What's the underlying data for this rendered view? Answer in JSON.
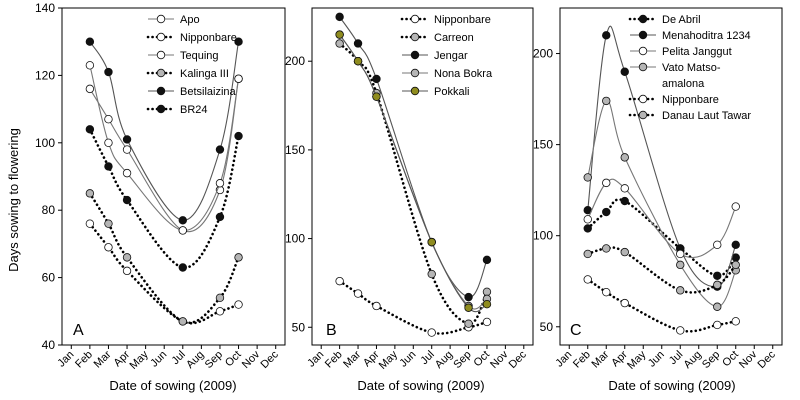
{
  "figure": {
    "ylabel": "Days sowing to flowering",
    "xlabel": "Date of sowing (2009)"
  },
  "chart_data": [
    {
      "type": "line",
      "panel_label": "A",
      "xlabel": "Date of sowing (2009)",
      "ylabel": "Days sowing to flowering",
      "xticks": [
        "Jan",
        "Feb",
        "Mar",
        "Apr",
        "May",
        "Jun",
        "Jul",
        "Aug",
        "Sep",
        "Oct",
        "Nov",
        "Dec"
      ],
      "yticks": [
        40,
        60,
        80,
        100,
        120,
        140
      ],
      "ylim": [
        40,
        140
      ],
      "legend_position": "top-right",
      "series": [
        {
          "name": "Apo",
          "marker": "open",
          "line": "solid",
          "markerColor": "#ffffff",
          "lineColor": "#777777",
          "x": [
            2,
            3,
            4,
            7,
            9,
            10
          ],
          "y": [
            116,
            107,
            98,
            74,
            86,
            119
          ]
        },
        {
          "name": "Nipponbare",
          "marker": "open",
          "line": "dotted",
          "markerColor": "#ffffff",
          "lineColor": "#000000",
          "x": [
            2,
            3,
            4,
            7,
            9,
            10
          ],
          "y": [
            76,
            69,
            62,
            47,
            50,
            52
          ]
        },
        {
          "name": "Tequing",
          "marker": "open",
          "line": "solid",
          "markerColor": "#ffffff",
          "lineColor": "#777777",
          "x": [
            2,
            3,
            4,
            7,
            9,
            10
          ],
          "y": [
            123,
            100,
            91,
            74,
            88,
            119
          ]
        },
        {
          "name": "Kalinga III",
          "marker": "gray",
          "line": "dotted",
          "markerColor": "#b5b5b5",
          "lineColor": "#000000",
          "x": [
            2,
            3,
            4,
            7,
            9,
            10
          ],
          "y": [
            85,
            76,
            66,
            47,
            54,
            66
          ]
        },
        {
          "name": "Betsilaizina",
          "marker": "filled",
          "line": "solid",
          "markerColor": "#111111",
          "lineColor": "#555555",
          "x": [
            2,
            3,
            4,
            7,
            9,
            10
          ],
          "y": [
            130,
            121,
            101,
            77,
            98,
            130
          ]
        },
        {
          "name": "BR24",
          "marker": "filled",
          "line": "dotted",
          "markerColor": "#111111",
          "lineColor": "#000000",
          "x": [
            2,
            3,
            4,
            7,
            9,
            10
          ],
          "y": [
            104,
            93,
            83,
            63,
            78,
            102
          ]
        }
      ]
    },
    {
      "type": "line",
      "panel_label": "B",
      "xlabel": "Date of sowing (2009)",
      "xticks": [
        "Jan",
        "Feb",
        "Mar",
        "Apr",
        "May",
        "Jun",
        "Jul",
        "Aug",
        "Sep",
        "Oct",
        "Nov",
        "Dec"
      ],
      "yticks": [
        50,
        100,
        150,
        200
      ],
      "ylim": [
        40,
        230
      ],
      "legend_position": "top-right",
      "series": [
        {
          "name": "Nipponbare",
          "marker": "open",
          "line": "dotted",
          "markerColor": "#ffffff",
          "lineColor": "#000000",
          "x": [
            2,
            3,
            4,
            7,
            9,
            10
          ],
          "y": [
            76,
            69,
            62,
            47,
            50,
            53
          ]
        },
        {
          "name": "Carreon",
          "marker": "gray",
          "line": "dotted",
          "markerColor": "#b5b5b5",
          "lineColor": "#000000",
          "x": [
            2,
            3,
            4,
            7,
            9,
            10
          ],
          "y": [
            210,
            200,
            182,
            80,
            52,
            70
          ]
        },
        {
          "name": "Jengar",
          "marker": "filled",
          "line": "solid",
          "markerColor": "#111111",
          "lineColor": "#555555",
          "x": [
            2,
            3,
            4,
            7,
            9,
            10
          ],
          "y": [
            225,
            210,
            190,
            98,
            67,
            88
          ]
        },
        {
          "name": "Nona Bokra",
          "marker": "gray",
          "line": "solid",
          "markerColor": "#b5b5b5",
          "lineColor": "#777777",
          "x": [
            2,
            3,
            4,
            7,
            9,
            10
          ],
          "y": [
            215,
            200,
            180,
            98,
            62,
            66
          ]
        },
        {
          "name": "Pokkali",
          "marker": "olive",
          "line": "solid",
          "markerColor": "#8f8c1f",
          "lineColor": "#555555",
          "x": [
            2,
            3,
            4,
            7,
            9,
            10
          ],
          "y": [
            215,
            200,
            180,
            98,
            61,
            63
          ]
        }
      ]
    },
    {
      "type": "line",
      "panel_label": "C",
      "xlabel": "Date of sowing (2009)",
      "xticks": [
        "Jan",
        "Feb",
        "Mar",
        "Apr",
        "May",
        "Jun",
        "Jul",
        "Aug",
        "Sep",
        "Oct",
        "Nov",
        "Dec"
      ],
      "yticks": [
        50,
        100,
        150,
        200
      ],
      "ylim": [
        40,
        225
      ],
      "legend_position": "top-right",
      "series": [
        {
          "name": "De Abril",
          "marker": "filled",
          "line": "dotted",
          "markerColor": "#111111",
          "lineColor": "#000000",
          "x": [
            2,
            3,
            4,
            7,
            9,
            10
          ],
          "y": [
            104,
            113,
            119,
            93,
            78,
            88
          ]
        },
        {
          "name": "Menahoditra 1234",
          "marker": "filled",
          "line": "solid",
          "markerColor": "#111111",
          "lineColor": "#555555",
          "x": [
            2,
            3,
            4,
            7,
            9,
            10
          ],
          "y": [
            114,
            210,
            190,
            93,
            72,
            95
          ]
        },
        {
          "name": "Pelita Janggut",
          "marker": "open",
          "line": "solid",
          "markerColor": "#ffffff",
          "lineColor": "#777777",
          "x": [
            2,
            3,
            4,
            7,
            9,
            10
          ],
          "y": [
            109,
            129,
            126,
            90,
            95,
            116
          ]
        },
        {
          "name": "Vato Matso-amalona",
          "marker": "gray",
          "line": "solid",
          "markerColor": "#b5b5b5",
          "lineColor": "#777777",
          "x": [
            2,
            3,
            4,
            7,
            9,
            10
          ],
          "y": [
            132,
            174,
            143,
            84,
            61,
            81
          ]
        },
        {
          "name": "Nipponbare",
          "marker": "open",
          "line": "dotted",
          "markerColor": "#ffffff",
          "lineColor": "#000000",
          "x": [
            2,
            3,
            4,
            7,
            9,
            10
          ],
          "y": [
            76,
            69,
            63,
            48,
            51,
            53
          ]
        },
        {
          "name": "Danau Laut Tawar",
          "marker": "gray",
          "line": "dotted",
          "markerColor": "#b5b5b5",
          "lineColor": "#000000",
          "x": [
            2,
            3,
            4,
            7,
            9,
            10
          ],
          "y": [
            90,
            93,
            91,
            70,
            73,
            84
          ]
        }
      ]
    }
  ]
}
